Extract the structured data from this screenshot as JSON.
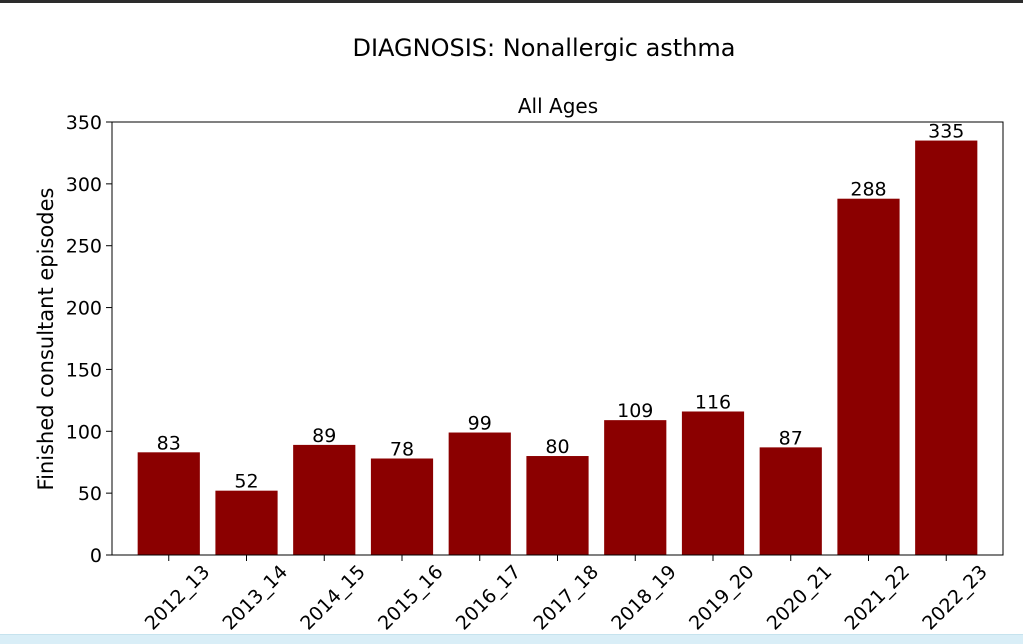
{
  "chart_data": {
    "type": "bar",
    "suptitle": "DIAGNOSIS: Nonallergic asthma",
    "title": "All Ages",
    "xlabel": "",
    "ylabel": "Finished consultant episodes",
    "categories": [
      "2012_13",
      "2013_14",
      "2014_15",
      "2015_16",
      "2016_17",
      "2017_18",
      "2018_19",
      "2019_20",
      "2020_21",
      "2021_22",
      "2022_23"
    ],
    "values": [
      83,
      52,
      89,
      78,
      99,
      80,
      109,
      116,
      87,
      288,
      335
    ],
    "ylim": [
      0,
      350
    ],
    "yticks": [
      0,
      50,
      100,
      150,
      200,
      250,
      300,
      350
    ],
    "bar_color": "#8b0000",
    "grid": false,
    "legend": "none",
    "data_labels": true
  }
}
